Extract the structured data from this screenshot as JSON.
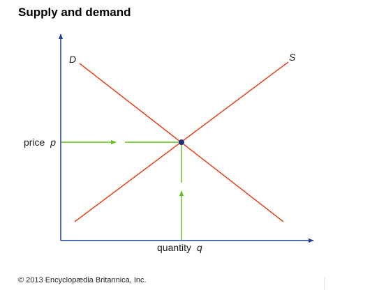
{
  "title": "Supply and demand",
  "labels": {
    "demand_curve": "D",
    "supply_curve": "S",
    "price_prefix": "price",
    "price_var": "p",
    "quantity_prefix": "quantity",
    "quantity_var": "q"
  },
  "copyright": "© 2013 Encyclopædia Britannica, Inc.",
  "colors": {
    "axis": "#1f3f9a",
    "curves": "#e8401c",
    "arrows": "#5ec21c",
    "equilibrium_point": "#1a2f7a"
  }
}
